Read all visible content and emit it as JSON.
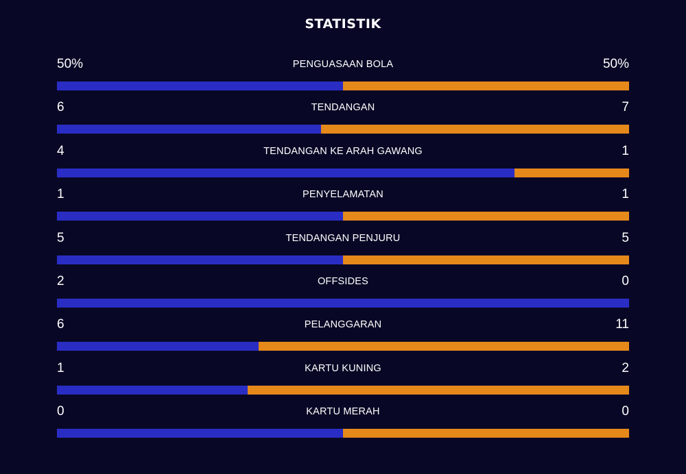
{
  "title": "STATISTIK",
  "colors": {
    "background": "#080826",
    "home": "#2a2dc4",
    "away": "#e5891a",
    "text": "#ffffff"
  },
  "stats": [
    {
      "label": "PENGUASAAN BOLA",
      "home": "50%",
      "away": "50%",
      "home_share": 0.5
    },
    {
      "label": "TENDANGAN",
      "home": "6",
      "away": "7",
      "home_share": 0.4615
    },
    {
      "label": "TENDANGAN KE ARAH GAWANG",
      "home": "4",
      "away": "1",
      "home_share": 0.8
    },
    {
      "label": "PENYELAMATAN",
      "home": "1",
      "away": "1",
      "home_share": 0.5
    },
    {
      "label": "TENDANGAN PENJURU",
      "home": "5",
      "away": "5",
      "home_share": 0.5
    },
    {
      "label": "OFFSIDES",
      "home": "2",
      "away": "0",
      "home_share": 1.0
    },
    {
      "label": "PELANGGARAN",
      "home": "6",
      "away": "11",
      "home_share": 0.3529
    },
    {
      "label": "KARTU KUNING",
      "home": "1",
      "away": "2",
      "home_share": 0.3333
    },
    {
      "label": "KARTU MERAH",
      "home": "0",
      "away": "0",
      "home_share": 0.5
    }
  ]
}
